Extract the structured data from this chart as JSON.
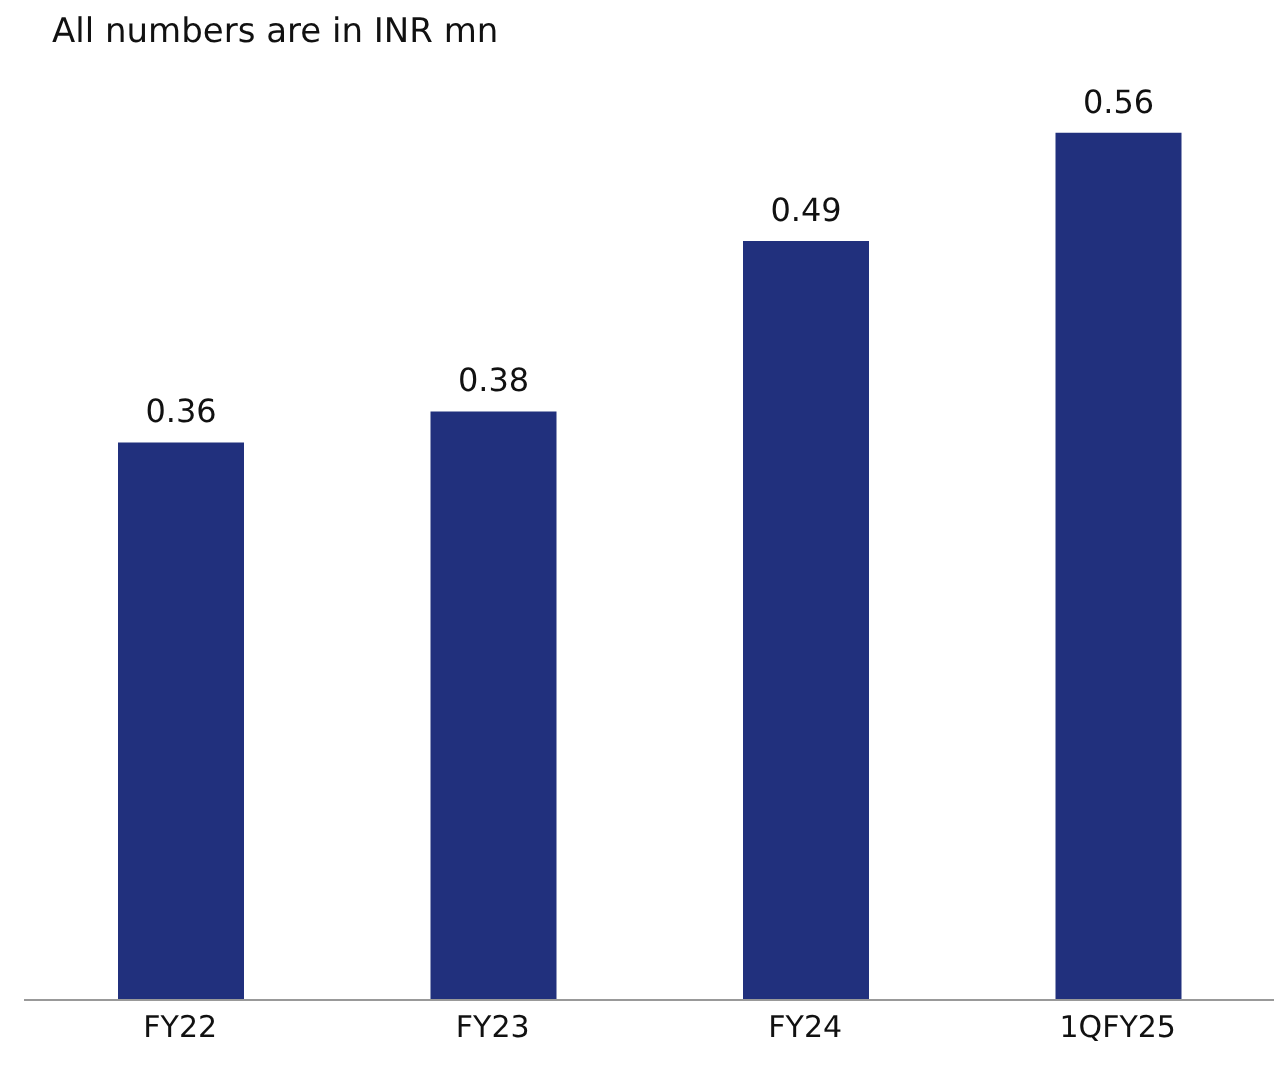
{
  "chart_data": {
    "type": "bar",
    "title": "All numbers are in INR mn",
    "categories": [
      "FY22",
      "FY23",
      "FY24",
      "1QFY25"
    ],
    "values": [
      0.36,
      0.38,
      0.49,
      0.56
    ],
    "color": "#21307d",
    "data_labels": true
  }
}
